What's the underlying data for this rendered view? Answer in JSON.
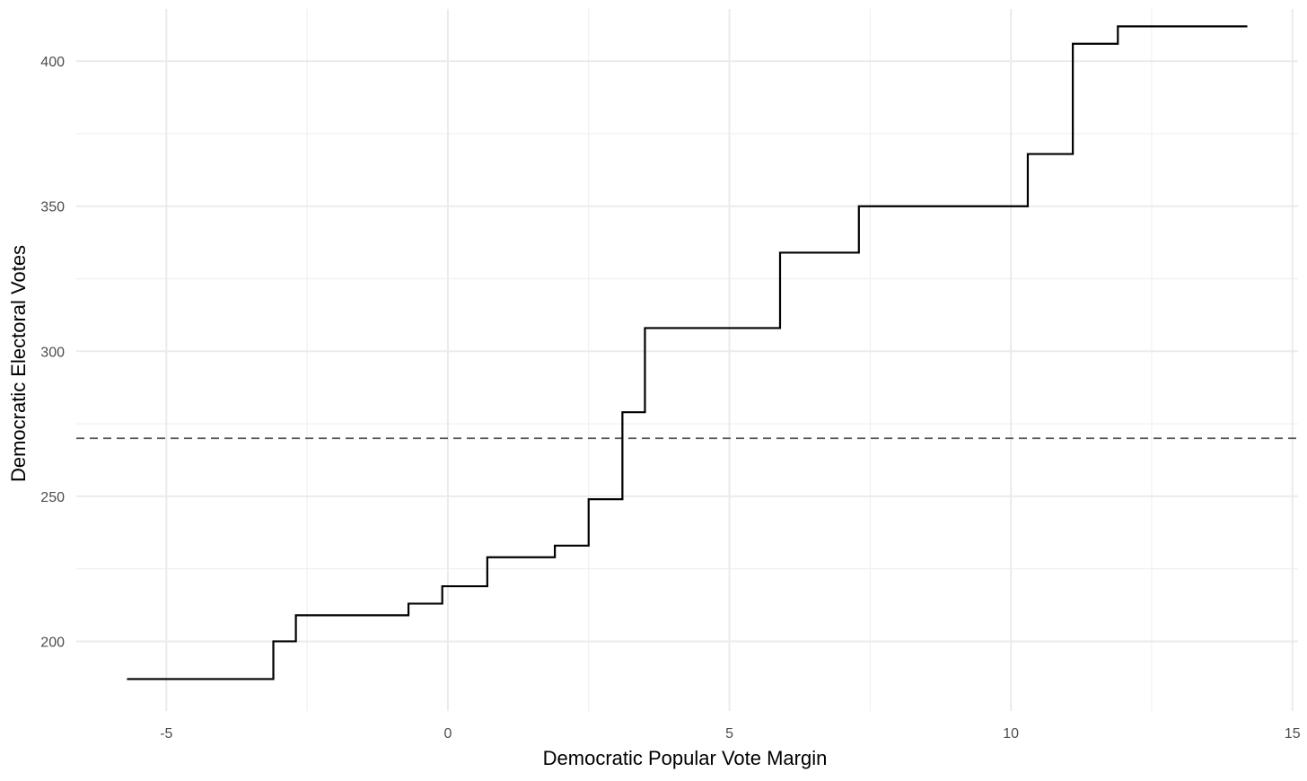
{
  "chart_data": {
    "type": "line",
    "line_shape": "step",
    "xlabel": "Democratic Popular Vote Margin",
    "ylabel": "Democratic Electoral Votes",
    "xlim": [
      -6.6,
      15.1
    ],
    "ylim": [
      176,
      418
    ],
    "x_ticks": [
      -5,
      0,
      5,
      10,
      15
    ],
    "x_tick_labels": [
      "-5",
      "0",
      "5",
      "10",
      "15"
    ],
    "y_ticks": [
      200,
      250,
      300,
      350,
      400
    ],
    "y_tick_labels": [
      "200",
      "250",
      "300",
      "350",
      "400"
    ],
    "x_minor_ticks": [
      -2.5,
      2.5,
      7.5,
      12.5
    ],
    "y_minor_ticks": [
      225,
      275,
      325,
      375
    ],
    "grid": true,
    "reference_line": {
      "y": 270,
      "style": "dashed",
      "color": "#555555"
    },
    "series": [
      {
        "color": "#000000",
        "points": [
          {
            "x": -5.7,
            "y": 187
          },
          {
            "x": -3.1,
            "y": 200
          },
          {
            "x": -2.7,
            "y": 209
          },
          {
            "x": -0.7,
            "y": 213
          },
          {
            "x": -0.1,
            "y": 219
          },
          {
            "x": 0.7,
            "y": 229
          },
          {
            "x": 1.9,
            "y": 233
          },
          {
            "x": 2.5,
            "y": 249
          },
          {
            "x": 3.1,
            "y": 279
          },
          {
            "x": 3.5,
            "y": 308
          },
          {
            "x": 5.9,
            "y": 334
          },
          {
            "x": 7.3,
            "y": 350
          },
          {
            "x": 10.3,
            "y": 368
          },
          {
            "x": 11.1,
            "y": 406
          },
          {
            "x": 11.9,
            "y": 412
          },
          {
            "x": 14.2,
            "y": 412
          }
        ]
      }
    ]
  }
}
